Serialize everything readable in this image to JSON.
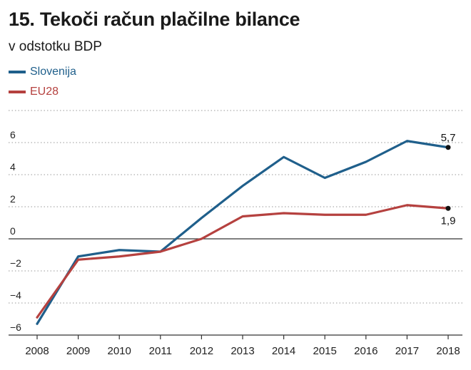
{
  "title": "15. Tekoči račun plačilne bilance",
  "subtitle": "v odstotku BDP",
  "colors": {
    "slovenija": "#1f5f8b",
    "eu28": "#b5413f",
    "grid": "#9a9a9a",
    "axis": "#333333"
  },
  "chart_data": {
    "type": "line",
    "x": [
      "2008",
      "2009",
      "2010",
      "2011",
      "2012",
      "2013",
      "2014",
      "2015",
      "2016",
      "2017",
      "2018"
    ],
    "series": [
      {
        "name": "Slovenija",
        "values": [
          -5.3,
          -1.1,
          -0.7,
          -0.8,
          1.3,
          3.3,
          5.1,
          3.8,
          4.8,
          6.1,
          5.7
        ]
      },
      {
        "name": "EU28",
        "values": [
          -4.9,
          -1.3,
          -1.1,
          -0.8,
          0.0,
          1.4,
          1.6,
          1.5,
          1.5,
          2.1,
          1.9
        ]
      }
    ],
    "ylim": [
      -6,
      8
    ],
    "yticks": [
      -6,
      -4,
      -2,
      0,
      2,
      4,
      6
    ],
    "ytick_labels": [
      "−6",
      "−4",
      "−2",
      "0",
      "2",
      "4",
      "6"
    ],
    "annotations": [
      {
        "series": "Slovenija",
        "x": "2018",
        "label": "5,7"
      },
      {
        "series": "EU28",
        "x": "2018",
        "label": "1,9"
      }
    ],
    "legend_position": "top-left",
    "grid": "horizontal dotted"
  }
}
